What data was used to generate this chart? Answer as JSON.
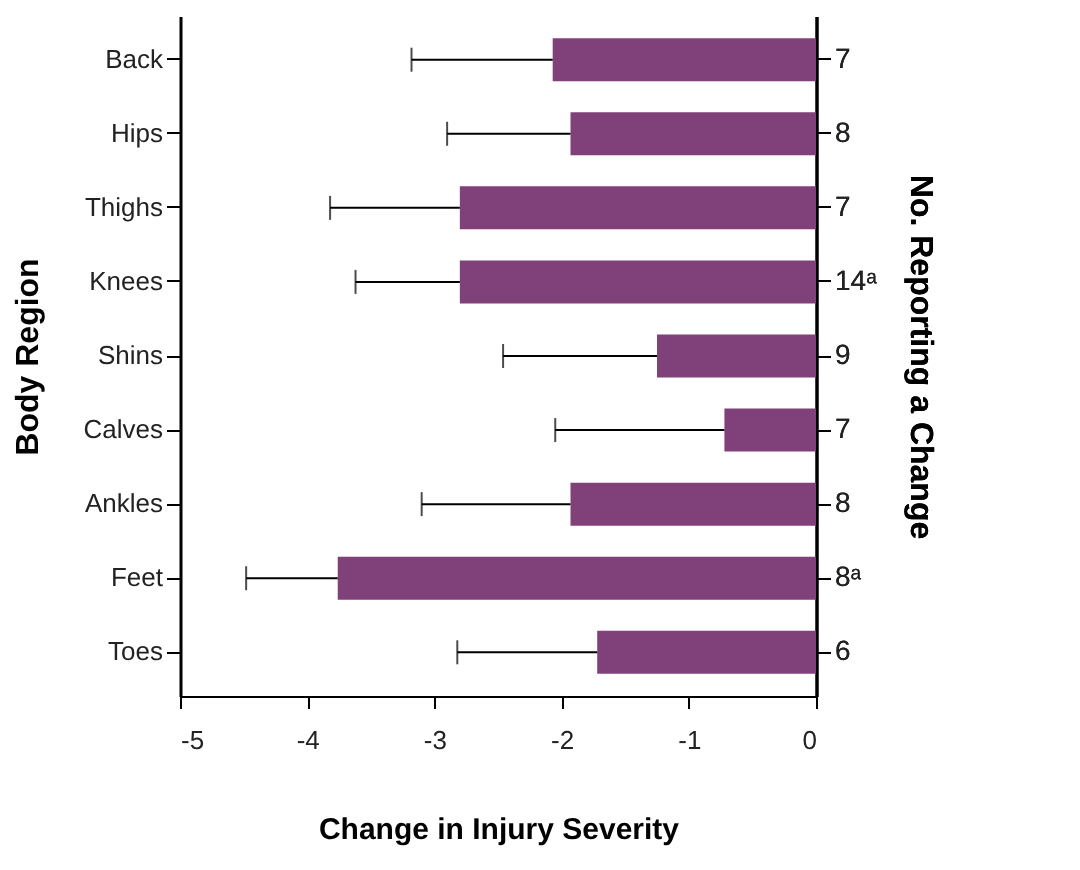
{
  "chart_data": {
    "type": "bar",
    "orientation": "horizontal",
    "categories": [
      "Back",
      "Hips",
      "Thighs",
      "Knees",
      "Shins",
      "Calves",
      "Ankles",
      "Feet",
      "Toes"
    ],
    "y2_categories": [
      "7",
      "8",
      "7",
      "14ᵃ",
      "9",
      "7",
      "8",
      "8ᵃ",
      "6"
    ],
    "values": [
      -2.07,
      -1.93,
      -2.8,
      -2.8,
      -1.25,
      -0.72,
      -1.93,
      -3.76,
      -1.72
    ],
    "errors": [
      [
        -3.18,
        -2.07
      ],
      [
        -2.9,
        -1.93
      ],
      [
        -3.82,
        -2.8
      ],
      [
        -3.62,
        -2.8
      ],
      [
        -2.46,
        -1.25
      ],
      [
        -2.05,
        -0.72
      ],
      [
        -3.1,
        -1.93
      ],
      [
        -4.48,
        -3.76
      ],
      [
        -2.82,
        -1.72
      ]
    ],
    "color": "#80407a",
    "xlim": [
      -5,
      0
    ],
    "xticks": [
      -5,
      -4,
      -3,
      -2,
      -1,
      0
    ],
    "xlabel": "Change in Injury Severity",
    "ylabel": "Body Region",
    "y2label": "No. Reporting a Change",
    "grid": false
  }
}
